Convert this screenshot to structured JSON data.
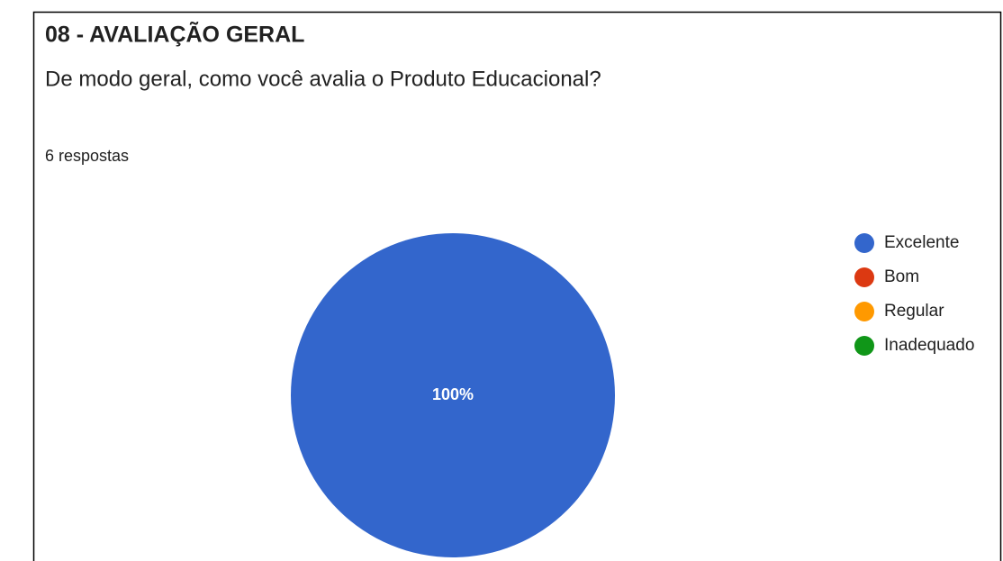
{
  "chart_data": {
    "type": "pie",
    "title": "08 - AVALIAÇÃO GERAL",
    "subtitle": "De modo geral, como você avalia o Produto Educacional?",
    "annotation": "6 respostas",
    "categories": [
      "Excelente",
      "Bom",
      "Regular",
      "Inadequado"
    ],
    "values": [
      100,
      0,
      0,
      0
    ],
    "value_labels": [
      "100%",
      null,
      null,
      null
    ],
    "colors": [
      "#3366cc",
      "#dc3912",
      "#ff9900",
      "#109618"
    ],
    "legend": "right"
  }
}
